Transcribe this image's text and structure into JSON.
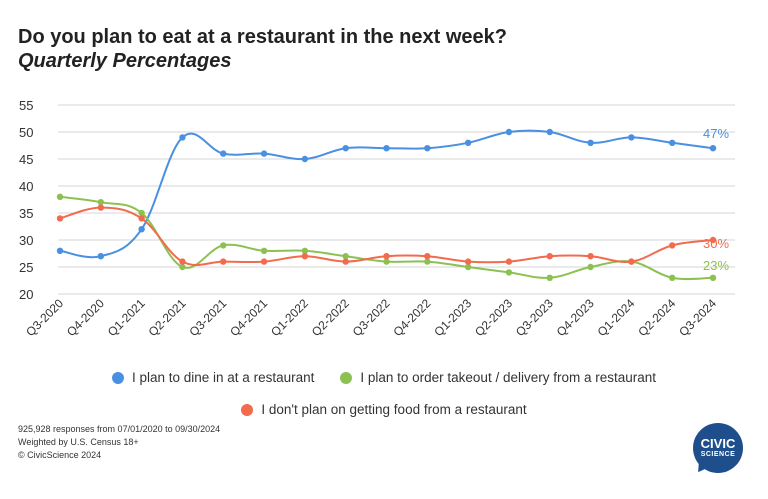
{
  "header": {
    "title": "Do you plan to eat at a restaurant in the next week?",
    "subtitle": "Quarterly Percentages"
  },
  "chart_data": {
    "type": "line",
    "categories": [
      "Q3-2020",
      "Q4-2020",
      "Q1-2021",
      "Q2-2021",
      "Q3-2021",
      "Q4-2021",
      "Q1-2022",
      "Q2-2022",
      "Q3-2022",
      "Q4-2022",
      "Q1-2023",
      "Q2-2023",
      "Q3-2023",
      "Q4-2023",
      "Q1-2024",
      "Q2-2024",
      "Q3-2024"
    ],
    "ylim": [
      20,
      55
    ],
    "yticks": [
      20,
      25,
      30,
      35,
      40,
      45,
      50,
      55
    ],
    "grid": true,
    "legend_position": "bottom",
    "series": [
      {
        "name": "I plan to dine in at a restaurant",
        "color": "#4a90e2",
        "values": [
          28,
          27,
          32,
          49,
          46,
          46,
          45,
          47,
          47,
          47,
          48,
          50,
          50,
          48,
          49,
          48,
          47
        ],
        "end_label": "47%"
      },
      {
        "name": "I plan to order takeout / delivery from a restaurant",
        "color": "#8cc152",
        "values": [
          38,
          37,
          35,
          25,
          29,
          28,
          28,
          27,
          26,
          26,
          25,
          24,
          23,
          25,
          26,
          23,
          23
        ],
        "end_label": "23%"
      },
      {
        "name": "I don't plan on getting food from a restaurant",
        "color": "#f26b4e",
        "values": [
          34,
          36,
          34,
          26,
          26,
          26,
          27,
          26,
          27,
          27,
          26,
          26,
          27,
          27,
          26,
          29,
          30
        ],
        "end_label": "30%"
      }
    ]
  },
  "footer": {
    "line1": "925,928 responses from 07/01/2020 to 09/30/2024",
    "line2": "Weighted by U.S. Census 18+",
    "line3": "© CivicScience 2024"
  },
  "logo": {
    "line1": "CIVIC",
    "line2": "SCIENCE"
  }
}
